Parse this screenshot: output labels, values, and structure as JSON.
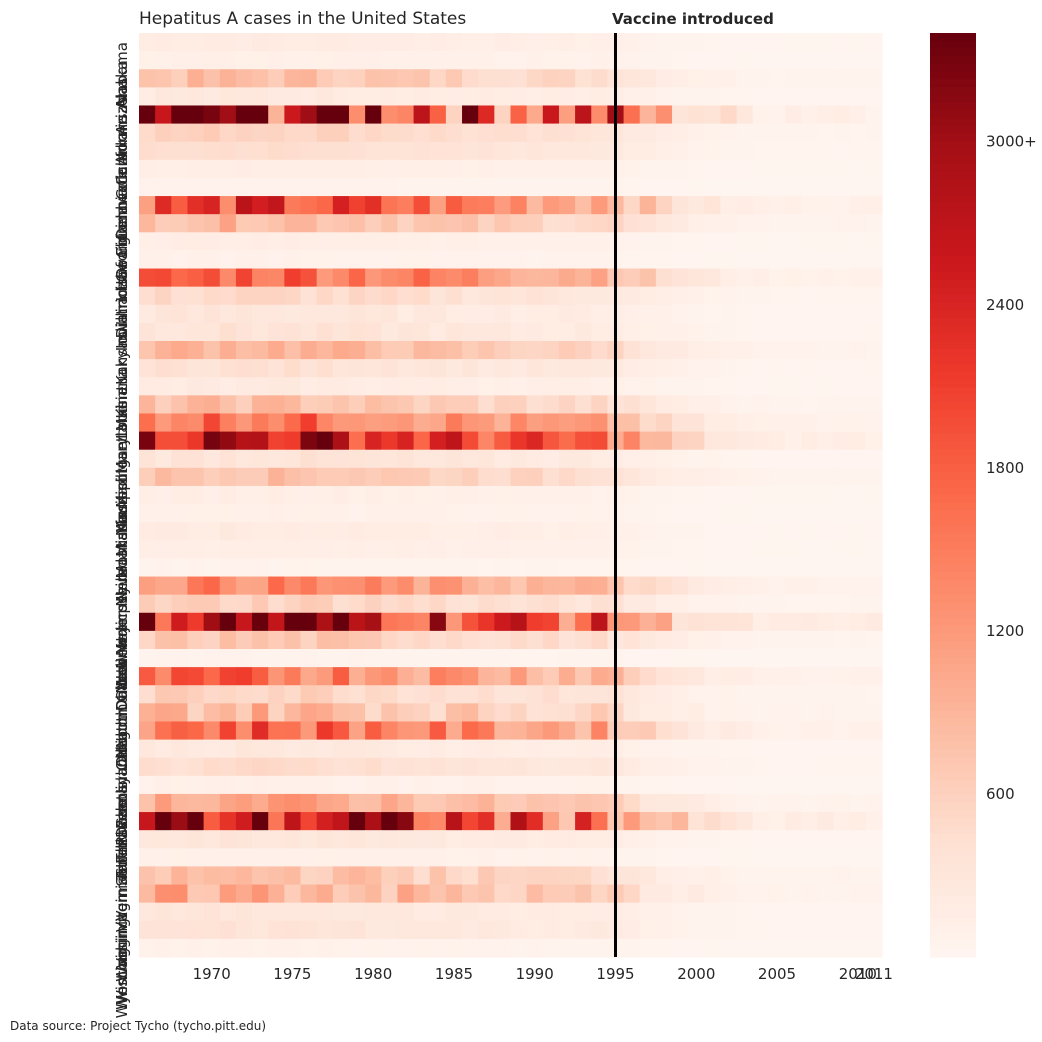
{
  "source": "Data source: Project Tycho (tycho.pitt.edu)",
  "annotation": "Vaccine introduced",
  "chart_data": {
    "type": "heatmap",
    "title": "Hepatitus A cases in the United States",
    "xlabel": "",
    "ylabel": "",
    "x_range": [
      1966,
      2011
    ],
    "x_ticks": [
      1970,
      1975,
      1980,
      1985,
      1990,
      1995,
      2000,
      2005,
      2010,
      2011
    ],
    "vaccine_year": 1995,
    "colorbar": {
      "min": 0,
      "max": 3400,
      "ticks": [
        "600",
        "1200",
        "1800",
        "2400",
        "3000+"
      ],
      "tick_values": [
        600,
        1200,
        1800,
        2400,
        3000
      ]
    },
    "colorscale": [
      "#fff5f0",
      "#fee0d2",
      "#fcbba1",
      "#fc9272",
      "#fb6a4a",
      "#ef3b2c",
      "#cb181d",
      "#a50f15",
      "#67000d"
    ],
    "states": [
      "Alabama",
      "Alaska",
      "Arizona",
      "Arkansas",
      "California",
      "Colorado",
      "Connecticut",
      "Delaware",
      "District Of Columbia",
      "Florida",
      "Georgia",
      "Hawaii",
      "Idaho",
      "Illinois",
      "Indiana",
      "Iowa",
      "Kansas",
      "Kentucky",
      "Louisiana",
      "Maine",
      "Maryland",
      "Massachusetts",
      "Michigan",
      "Minnesota",
      "Mississippi",
      "Missouri",
      "Montana",
      "Nebraska",
      "Nevada",
      "New Hampshire",
      "New Jersey",
      "New Mexico",
      "New York",
      "North Carolina",
      "North Dakota",
      "Ohio",
      "Oklahoma",
      "Oregon",
      "Pennsylvania",
      "Rhode Island",
      "South Carolina",
      "South Dakota",
      "Tennessee",
      "Texas",
      "Utah",
      "Vermont",
      "Virginia",
      "Washington",
      "West Virginia",
      "Wisconsin",
      "Wyoming"
    ],
    "visible_state_labels": [
      "Alabama",
      "Alaska",
      "Arizona",
      "Arkansas",
      "California",
      "Colorado",
      "Connecticut",
      "Delaware",
      "District Of Columbia",
      "Florida",
      "Georgia",
      "Hawaii",
      "Idaho",
      "Illinois",
      "Indiana",
      "Iowa",
      "Kansas",
      "Kentucky",
      "Louisiana",
      "Maine",
      "Maryland",
      "Massachusetts",
      "Michigan",
      "Minnesota",
      "Mississippi",
      "Missouri",
      "Montana",
      "Nebraska",
      "Nevada",
      "New Hampshire",
      "New Jersey",
      "New Mexico",
      "New York",
      "North Carolina",
      "North Dakota",
      "Ohio",
      "Oklahoma",
      "Oregon",
      "Pennsylvania",
      "Rhode Island",
      "South Carolina",
      "South Dakota",
      "Tennessee",
      "Texas",
      "Utah",
      "Vermont",
      "Virginia",
      "Washington",
      "West Virginia",
      "Wisconsin",
      "Wyoming"
    ],
    "row_profiles": [
      [
        200,
        0.3
      ],
      [
        120,
        0.3
      ],
      [
        800,
        0.5
      ],
      [
        250,
        0.4
      ],
      [
        3300,
        1.6
      ],
      [
        600,
        0.3
      ],
      [
        450,
        0.2
      ],
      [
        150,
        0.2
      ],
      [
        60,
        0.2
      ],
      [
        2000,
        0.8
      ],
      [
        900,
        0.5
      ],
      [
        150,
        0.3
      ],
      [
        80,
        0.3
      ],
      [
        1800,
        0.6
      ],
      [
        500,
        0.5
      ],
      [
        300,
        0.5
      ],
      [
        350,
        0.5
      ],
      [
        950,
        0.4
      ],
      [
        400,
        0.4
      ],
      [
        200,
        0.5
      ],
      [
        800,
        0.5
      ],
      [
        1700,
        0.6
      ],
      [
        2800,
        0.7
      ],
      [
        350,
        0.5
      ],
      [
        800,
        0.4
      ],
      [
        150,
        0.4
      ],
      [
        100,
        0.3
      ],
      [
        200,
        0.4
      ],
      [
        150,
        0.3
      ],
      [
        50,
        0.3
      ],
      [
        1400,
        0.5
      ],
      [
        600,
        0.5
      ],
      [
        3100,
        1.0
      ],
      [
        700,
        0.5
      ],
      [
        50,
        0.3
      ],
      [
        1600,
        0.7
      ],
      [
        600,
        0.5
      ],
      [
        900,
        0.8
      ],
      [
        1800,
        0.7
      ],
      [
        250,
        0.4
      ],
      [
        450,
        0.4
      ],
      [
        100,
        0.4
      ],
      [
        1100,
        0.5
      ],
      [
        2800,
        1.2
      ],
      [
        300,
        0.3
      ],
      [
        100,
        0.3
      ],
      [
        800,
        0.6
      ],
      [
        1000,
        0.8
      ],
      [
        300,
        0.3
      ],
      [
        350,
        0.4
      ],
      [
        80,
        0.3
      ]
    ]
  }
}
